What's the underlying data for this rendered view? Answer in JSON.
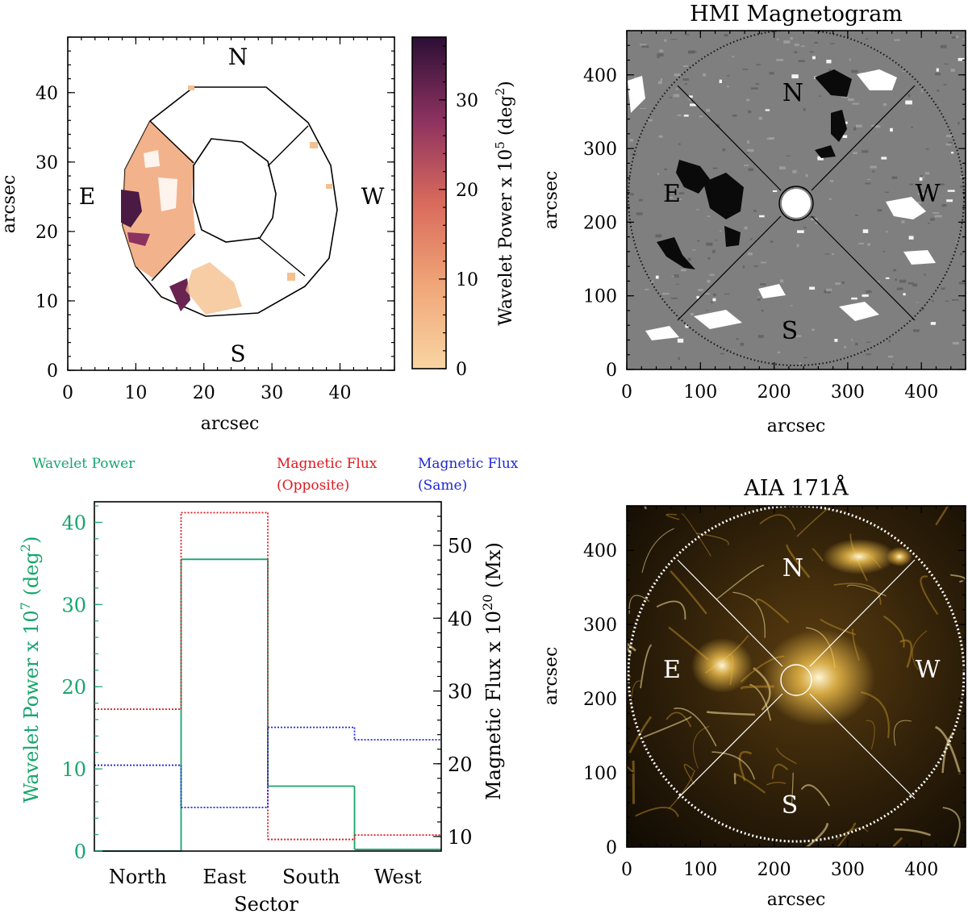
{
  "colors": {
    "wavelet": "#16a56e",
    "opposite": "#e0191f",
    "same": "#1f27d8",
    "axis": "#000000",
    "power_low": "#f9d5a3",
    "power_mid": "#d96a5c",
    "power_high": "#2c0f35",
    "hmi_bg": "#808080",
    "aia_bg": "#1a1206",
    "aia_glow": "#f2c14c"
  },
  "chart_data": [
    {
      "id": "wavelet_map",
      "type": "heatmap",
      "title": "",
      "xlabel": "arcsec",
      "ylabel": "arcsec",
      "xlim": [
        0,
        48
      ],
      "ylim": [
        0,
        48
      ],
      "xticks": [
        0,
        10,
        20,
        30,
        40
      ],
      "yticks": [
        0,
        10,
        20,
        30,
        40
      ],
      "sector_labels": {
        "north": "N",
        "east": "E",
        "south": "S",
        "west": "W"
      },
      "colorbar": {
        "label": "Wavelet Power x 10",
        "label_exp": "5",
        "label_tail": " (deg",
        "label_tail_exp": "2",
        "label_end": ")",
        "range": [
          0,
          37
        ],
        "ticks": [
          0,
          10,
          20,
          30
        ]
      }
    },
    {
      "id": "hmi_magnetogram",
      "type": "heatmap",
      "title": "HMI Magnetogram",
      "xlabel": "arcsec",
      "ylabel": "arcsec",
      "xlim": [
        0,
        460
      ],
      "ylim": [
        0,
        460
      ],
      "xticks": [
        0,
        100,
        200,
        300,
        400
      ],
      "yticks": [
        0,
        100,
        200,
        300,
        400
      ],
      "center": [
        230,
        230
      ],
      "sector_labels": {
        "north": "N",
        "east": "E",
        "south": "S",
        "west": "W"
      }
    },
    {
      "id": "sector_histogram",
      "type": "bar",
      "categories": [
        "North",
        "East",
        "South",
        "West"
      ],
      "xlabel": "Sector",
      "ylabel_left": "Wavelet Power x 10",
      "ylabel_left_exp": "7",
      "ylabel_left_tail": " (deg",
      "ylabel_left_tail_exp": "2",
      "ylabel_left_end": ")",
      "ylabel_right": "Magnetic Flux x 10",
      "ylabel_right_exp": "20",
      "ylabel_right_tail": " (Mx)",
      "ylim_left": [
        0,
        42.5
      ],
      "ylim_right": [
        8,
        56
      ],
      "yticks_left": [
        0,
        10,
        20,
        30,
        40
      ],
      "yticks_right": [
        10,
        20,
        30,
        40,
        50
      ],
      "legend": {
        "wavelet": "Wavelet Power",
        "opposite_1": "Magnetic Flux",
        "opposite_2": "(Opposite)",
        "same_1": "Magnetic Flux",
        "same_2": "(Same)"
      },
      "series": [
        {
          "name": "Wavelet Power",
          "axis": "left",
          "values": [
            0,
            35.5,
            7.9,
            0.2
          ]
        },
        {
          "name": "Magnetic Flux (Opposite)",
          "axis": "right",
          "values": [
            27.5,
            54.5,
            9.6,
            10.2
          ]
        },
        {
          "name": "Magnetic Flux (Same)",
          "axis": "right",
          "values": [
            19.8,
            14.0,
            25.0,
            23.3
          ]
        }
      ]
    },
    {
      "id": "aia_171",
      "type": "heatmap",
      "title": "AIA 171Å",
      "xlabel": "arcsec",
      "ylabel": "arcsec",
      "xlim": [
        0,
        460
      ],
      "ylim": [
        0,
        460
      ],
      "xticks": [
        0,
        100,
        200,
        300,
        400
      ],
      "yticks": [
        0,
        100,
        200,
        300,
        400
      ],
      "center": [
        230,
        230
      ],
      "sector_labels": {
        "north": "N",
        "east": "E",
        "south": "S",
        "west": "W"
      }
    }
  ]
}
